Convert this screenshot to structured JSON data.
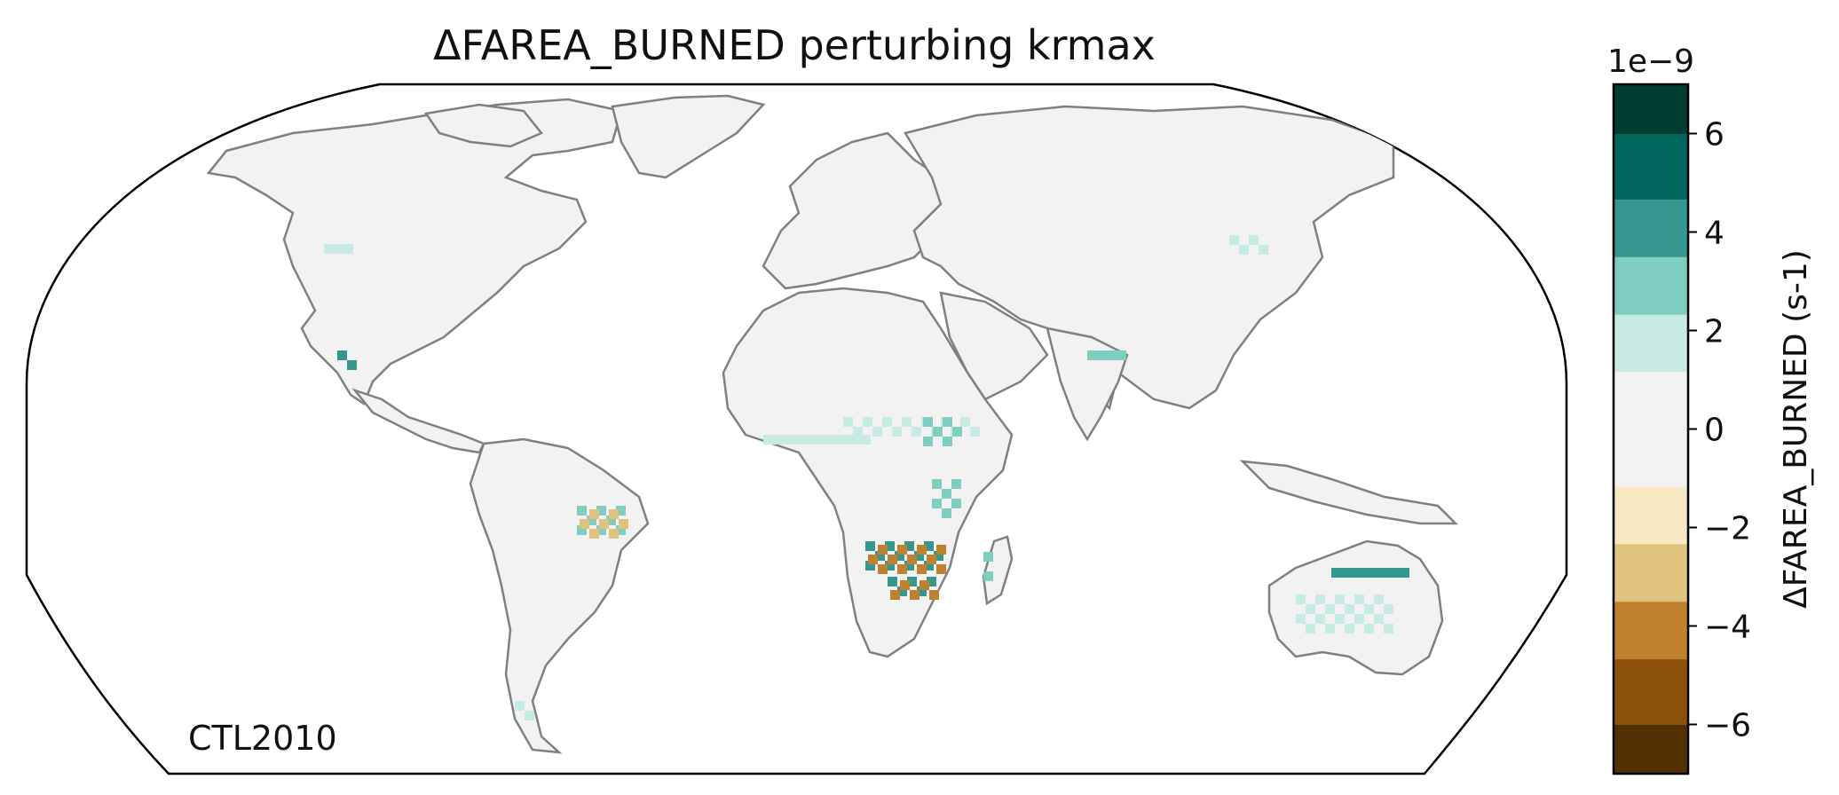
{
  "title": "ΔFAREA_BURNED perturbing krmax",
  "run_label": "CTL2010",
  "map": {
    "projection": "robinson",
    "background_color": "#f2f2f2",
    "coastline_color": "#808080",
    "border_color": "#c8c8c8"
  },
  "colorbar": {
    "label": "ΔFAREA_BURNED (s-1)",
    "scale_label": "1e−9",
    "ticks": [
      -6,
      -4,
      -2,
      0,
      2,
      4,
      6
    ],
    "tick_labels": [
      "−6",
      "−4",
      "−2",
      "0",
      "2",
      "4",
      "6"
    ],
    "vmin": -7,
    "vmax": 7,
    "levels": [
      {
        "range": [
          -7,
          -6
        ],
        "color": "#543005"
      },
      {
        "range": [
          -6,
          -4.67
        ],
        "color": "#8c510a"
      },
      {
        "range": [
          -4.67,
          -3.5
        ],
        "color": "#bf812d"
      },
      {
        "range": [
          -3.5,
          -2.33
        ],
        "color": "#dfc27d"
      },
      {
        "range": [
          -2.33,
          -1.17
        ],
        "color": "#f6e8c3"
      },
      {
        "range": [
          -1.17,
          1.17
        ],
        "color": "#f2f2f2"
      },
      {
        "range": [
          1.17,
          2.33
        ],
        "color": "#c7eae5"
      },
      {
        "range": [
          2.33,
          3.5
        ],
        "color": "#80cdc1"
      },
      {
        "range": [
          3.5,
          4.67
        ],
        "color": "#35978f"
      },
      {
        "range": [
          4.67,
          6
        ],
        "color": "#01665e"
      },
      {
        "range": [
          6,
          7
        ],
        "color": "#003c30"
      }
    ]
  },
  "anomaly_regions": [
    {
      "region": "Sahel",
      "value": 1.5
    },
    {
      "region": "Central Africa",
      "value": 3.5
    },
    {
      "region": "Southern Africa (Zambia/Angola)",
      "value": 4.5
    },
    {
      "region": "Southern Africa (Zambia/Angola)",
      "value": -4.5
    },
    {
      "region": "Madagascar",
      "value": 2.5
    },
    {
      "region": "Northern Australia",
      "value": 4.0
    },
    {
      "region": "Australia interior",
      "value": 1.5
    },
    {
      "region": "Eastern Brazil",
      "value": 3.0
    },
    {
      "region": "Eastern Brazil",
      "value": -3.0
    },
    {
      "region": "Mexico",
      "value": 4.5
    },
    {
      "region": "India",
      "value": 3.5
    },
    {
      "region": "Mongolia",
      "value": 1.5
    },
    {
      "region": "Western Canada",
      "value": 1.5
    },
    {
      "region": "Argentina",
      "value": 1.5
    }
  ]
}
